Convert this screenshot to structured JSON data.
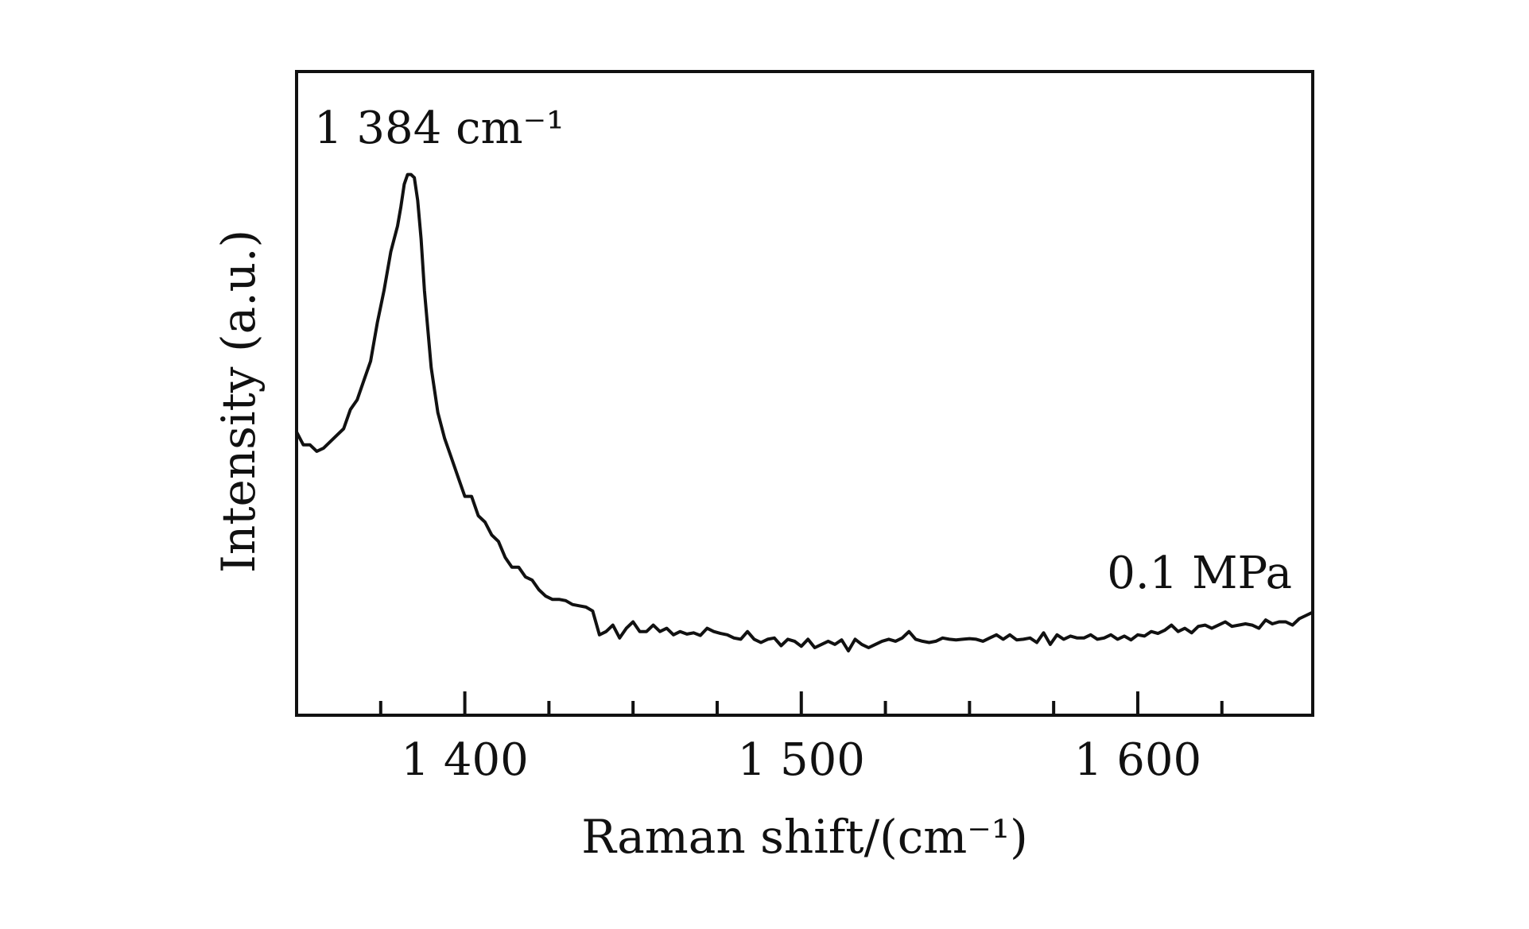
{
  "chart_data": {
    "type": "line",
    "xlabel": "Raman shift/(cm⁻¹)",
    "ylabel": "Intensity (a.u.)",
    "xlim": [
      1350,
      1652
    ],
    "ylim": [
      0,
      1
    ],
    "grid": false,
    "x_major_ticks": [
      1400,
      1500,
      1600
    ],
    "x_tick_labels": [
      "1 400",
      "1 500",
      "1 600"
    ],
    "x_minor_ticks": [
      1375,
      1425,
      1450,
      1475,
      1525,
      1550,
      1575,
      1625
    ],
    "y_tick_labels_shown": false,
    "annotations": [
      {
        "text": "1 384 cm⁻¹",
        "x": 1384
      },
      {
        "text": "0.1 MPa"
      }
    ],
    "series": [
      {
        "x": [
          1350,
          1352,
          1354,
          1356,
          1358,
          1360,
          1362,
          1364,
          1366,
          1368,
          1370,
          1372,
          1374,
          1376,
          1378,
          1380,
          1381,
          1382,
          1383,
          1384,
          1385,
          1386,
          1387,
          1388,
          1390,
          1392,
          1394,
          1396,
          1398,
          1400,
          1402,
          1404,
          1406,
          1408,
          1410,
          1412,
          1414,
          1416,
          1418,
          1420,
          1422,
          1424,
          1426,
          1428,
          1430,
          1432,
          1434,
          1436,
          1438,
          1440,
          1442,
          1444,
          1446,
          1448,
          1450,
          1452,
          1454,
          1456,
          1458,
          1460,
          1462,
          1464,
          1466,
          1468,
          1470,
          1472,
          1474,
          1476,
          1478,
          1480,
          1482,
          1484,
          1486,
          1488,
          1490,
          1492,
          1494,
          1496,
          1498,
          1500,
          1502,
          1504,
          1506,
          1508,
          1510,
          1512,
          1514,
          1516,
          1518,
          1520,
          1522,
          1524,
          1526,
          1528,
          1530,
          1532,
          1534,
          1536,
          1538,
          1540,
          1542,
          1544,
          1546,
          1548,
          1550,
          1552,
          1554,
          1556,
          1558,
          1560,
          1562,
          1564,
          1566,
          1568,
          1570,
          1572,
          1574,
          1576,
          1578,
          1580,
          1582,
          1584,
          1586,
          1588,
          1590,
          1592,
          1594,
          1596,
          1598,
          1600,
          1602,
          1604,
          1606,
          1608,
          1610,
          1612,
          1614,
          1616,
          1618,
          1620,
          1622,
          1624,
          1626,
          1628,
          1630,
          1632,
          1634,
          1636,
          1638,
          1640,
          1642,
          1644,
          1646,
          1648,
          1650,
          1652
        ],
        "y": [
          0.44,
          0.42,
          0.42,
          0.41,
          0.415,
          0.425,
          0.435,
          0.445,
          0.475,
          0.49,
          0.52,
          0.55,
          0.61,
          0.66,
          0.72,
          0.76,
          0.79,
          0.825,
          0.84,
          0.84,
          0.835,
          0.8,
          0.74,
          0.66,
          0.54,
          0.47,
          0.43,
          0.4,
          0.37,
          0.34,
          0.34,
          0.31,
          0.3,
          0.28,
          0.27,
          0.245,
          0.23,
          0.23,
          0.215,
          0.21,
          0.195,
          0.185,
          0.18,
          0.18,
          0.178,
          0.172,
          0.17,
          0.168,
          0.162,
          0.125,
          0.13,
          0.14,
          0.12,
          0.135,
          0.145,
          0.13,
          0.13,
          0.14,
          0.13,
          0.135,
          0.125,
          0.13,
          0.126,
          0.128,
          0.124,
          0.135,
          0.13,
          0.127,
          0.125,
          0.12,
          0.118,
          0.13,
          0.118,
          0.113,
          0.118,
          0.12,
          0.108,
          0.118,
          0.115,
          0.107,
          0.118,
          0.105,
          0.11,
          0.115,
          0.11,
          0.117,
          0.1,
          0.118,
          0.11,
          0.105,
          0.11,
          0.115,
          0.118,
          0.115,
          0.12,
          0.13,
          0.118,
          0.115,
          0.113,
          0.115,
          0.12,
          0.118,
          0.117,
          0.118,
          0.119,
          0.118,
          0.115,
          0.12,
          0.125,
          0.118,
          0.125,
          0.117,
          0.118,
          0.12,
          0.113,
          0.128,
          0.11,
          0.125,
          0.118,
          0.123,
          0.12,
          0.12,
          0.125,
          0.118,
          0.12,
          0.125,
          0.118,
          0.123,
          0.117,
          0.125,
          0.123,
          0.13,
          0.127,
          0.132,
          0.14,
          0.13,
          0.135,
          0.128,
          0.138,
          0.14,
          0.135,
          0.14,
          0.145,
          0.138,
          0.14,
          0.142,
          0.14,
          0.135,
          0.148,
          0.142,
          0.145,
          0.145,
          0.14,
          0.15,
          0.155,
          0.16
        ]
      }
    ]
  }
}
